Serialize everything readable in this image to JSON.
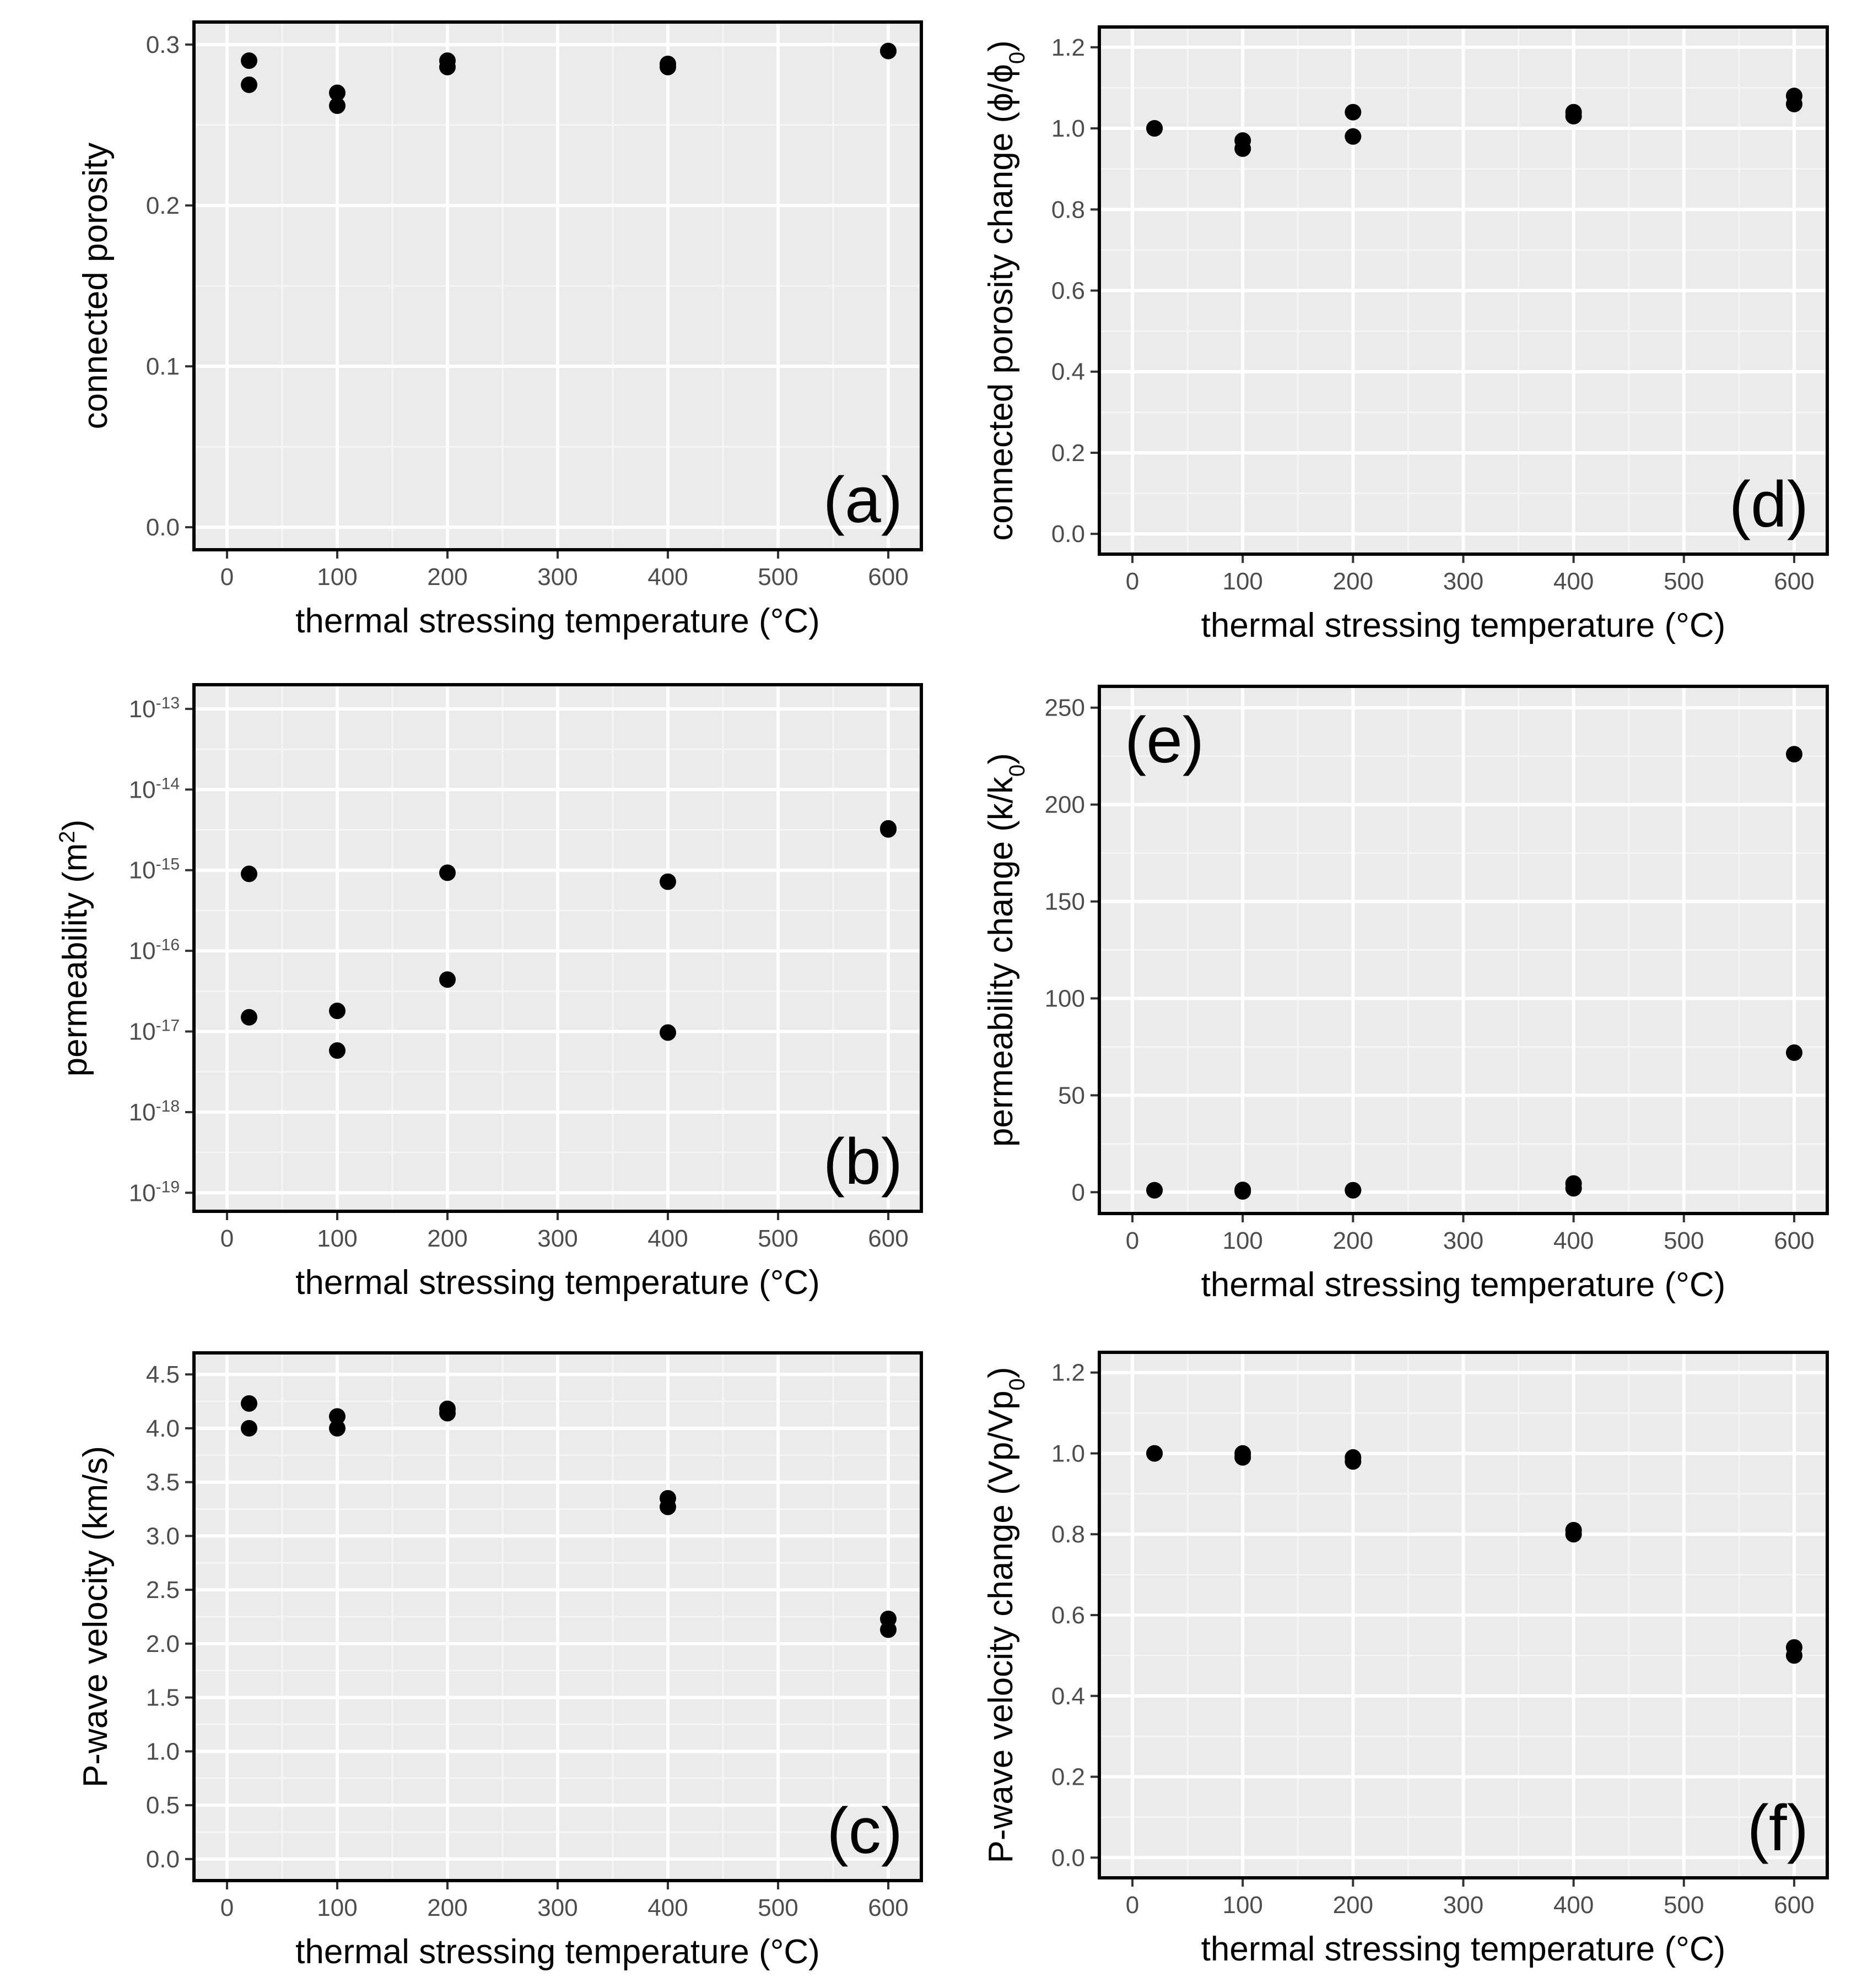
{
  "figure": {
    "colors": {
      "panel_background": "#ebebeb",
      "grid_major": "#ffffff",
      "grid_minor": "#f5f5f5",
      "border": "#000000",
      "points": "#000000",
      "tick_text": "#4d4d4d"
    }
  },
  "chart_data": [
    {
      "id": "a",
      "type": "scatter",
      "panel_label": "(a)",
      "label_position": "bottom-right",
      "xlabel": "thermal stressing temperature (°C)",
      "ylabel": "connected porosity",
      "xlim": [
        -30,
        630
      ],
      "ylim": [
        -0.014,
        0.314
      ],
      "xticks": [
        0,
        100,
        200,
        300,
        400,
        500,
        600
      ],
      "xtick_labels": [
        "0",
        "100",
        "200",
        "300",
        "400",
        "500",
        "600"
      ],
      "yticks": [
        0.0,
        0.1,
        0.2,
        0.3
      ],
      "ytick_labels": [
        "0.0",
        "0.1",
        "0.2",
        "0.3"
      ],
      "x": [
        20,
        20,
        100,
        100,
        200,
        200,
        400,
        400,
        600,
        600
      ],
      "y": [
        0.29,
        0.275,
        0.27,
        0.262,
        0.29,
        0.286,
        0.288,
        0.286,
        0.296,
        0.296
      ]
    },
    {
      "id": "b",
      "type": "scatter",
      "scale_y": "log10",
      "panel_label": "(b)",
      "label_position": "bottom-right",
      "xlabel": "thermal stressing temperature (°C)",
      "ylabel": "permeability (m2)",
      "xlim": [
        -30,
        630
      ],
      "ylim": [
        -19.23,
        -12.7
      ],
      "xticks": [
        0,
        100,
        200,
        300,
        400,
        500,
        600
      ],
      "xtick_labels": [
        "0",
        "100",
        "200",
        "300",
        "400",
        "500",
        "600"
      ],
      "yticks": [
        -19,
        -18,
        -17,
        -16,
        -15,
        -14,
        -13
      ],
      "ytick_labels": [
        "10-19",
        "10-18",
        "10-17",
        "10-16",
        "10-15",
        "10-14",
        "10-13"
      ],
      "x": [
        20,
        20,
        100,
        100,
        200,
        200,
        400,
        400,
        600,
        600
      ],
      "y": [
        9e-16,
        1.5e-17,
        1.8e-17,
        5.8e-18,
        9.3e-16,
        4.4e-17,
        7.2e-16,
        9.7e-18,
        3.3e-15,
        3.2e-15
      ]
    },
    {
      "id": "c",
      "type": "scatter",
      "panel_label": "(c)",
      "label_position": "bottom-right",
      "xlabel": "thermal stressing temperature (°C)",
      "ylabel": "P-wave velocity (km/s)",
      "xlim": [
        -30,
        630
      ],
      "ylim": [
        -0.2,
        4.7
      ],
      "xticks": [
        0,
        100,
        200,
        300,
        400,
        500,
        600
      ],
      "xtick_labels": [
        "0",
        "100",
        "200",
        "300",
        "400",
        "500",
        "600"
      ],
      "yticks": [
        0.0,
        0.5,
        1.0,
        1.5,
        2.0,
        2.5,
        3.0,
        3.5,
        4.0,
        4.5
      ],
      "ytick_labels": [
        "0.0",
        "0.5",
        "1.0",
        "1.5",
        "2.0",
        "2.5",
        "3.0",
        "3.5",
        "4.0",
        "4.5"
      ],
      "x": [
        20,
        20,
        100,
        100,
        200,
        200,
        400,
        400,
        600,
        600
      ],
      "y": [
        4.23,
        4.0,
        4.11,
        4.0,
        4.18,
        4.14,
        3.35,
        3.27,
        2.23,
        2.13
      ]
    },
    {
      "id": "d",
      "type": "scatter",
      "panel_label": "(d)",
      "label_position": "bottom-right",
      "xlabel": "thermal stressing temperature (°C)",
      "ylabel": "connected porosity change (ϕ/ϕ0)",
      "xlim": [
        -30,
        630
      ],
      "ylim": [
        -0.05,
        1.25
      ],
      "xticks": [
        0,
        100,
        200,
        300,
        400,
        500,
        600
      ],
      "xtick_labels": [
        "0",
        "100",
        "200",
        "300",
        "400",
        "500",
        "600"
      ],
      "yticks": [
        0.0,
        0.2,
        0.4,
        0.6,
        0.8,
        1.0,
        1.2
      ],
      "ytick_labels": [
        "0.0",
        "0.2",
        "0.4",
        "0.6",
        "0.8",
        "1.0",
        "1.2"
      ],
      "x": [
        20,
        20,
        100,
        100,
        200,
        200,
        400,
        400,
        600,
        600
      ],
      "y": [
        1.0,
        1.0,
        0.97,
        0.95,
        1.04,
        0.98,
        1.04,
        1.03,
        1.08,
        1.06
      ]
    },
    {
      "id": "e",
      "type": "scatter",
      "panel_label": "(e)",
      "label_position": "top-left",
      "xlabel": "thermal stressing temperature (°C)",
      "ylabel": "permeability change (k/k0)",
      "xlim": [
        -30,
        630
      ],
      "ylim": [
        -11,
        261
      ],
      "xticks": [
        0,
        100,
        200,
        300,
        400,
        500,
        600
      ],
      "xtick_labels": [
        "0",
        "100",
        "200",
        "300",
        "400",
        "500",
        "600"
      ],
      "yticks": [
        0,
        50,
        100,
        150,
        200,
        250
      ],
      "ytick_labels": [
        "0",
        "50",
        "100",
        "150",
        "200",
        "250"
      ],
      "x": [
        20,
        20,
        100,
        100,
        200,
        200,
        400,
        400,
        600,
        600
      ],
      "y": [
        1,
        1,
        1.2,
        0.4,
        1,
        1,
        4.5,
        2,
        226,
        72
      ]
    },
    {
      "id": "f",
      "type": "scatter",
      "panel_label": "(f)",
      "label_position": "bottom-right",
      "xlabel": "thermal stressing temperature (°C)",
      "ylabel": "P-wave velocity change (Vp/Vp0)",
      "xlim": [
        -30,
        630
      ],
      "ylim": [
        -0.05,
        1.25
      ],
      "xticks": [
        0,
        100,
        200,
        300,
        400,
        500,
        600
      ],
      "xtick_labels": [
        "0",
        "100",
        "200",
        "300",
        "400",
        "500",
        "600"
      ],
      "yticks": [
        0.0,
        0.2,
        0.4,
        0.6,
        0.8,
        1.0,
        1.2
      ],
      "ytick_labels": [
        "0.0",
        "0.2",
        "0.4",
        "0.6",
        "0.8",
        "1.0",
        "1.2"
      ],
      "x": [
        20,
        20,
        100,
        100,
        200,
        200,
        400,
        400,
        600,
        600
      ],
      "y": [
        1.0,
        1.0,
        1.0,
        0.99,
        0.99,
        0.98,
        0.81,
        0.8,
        0.52,
        0.5
      ]
    }
  ]
}
